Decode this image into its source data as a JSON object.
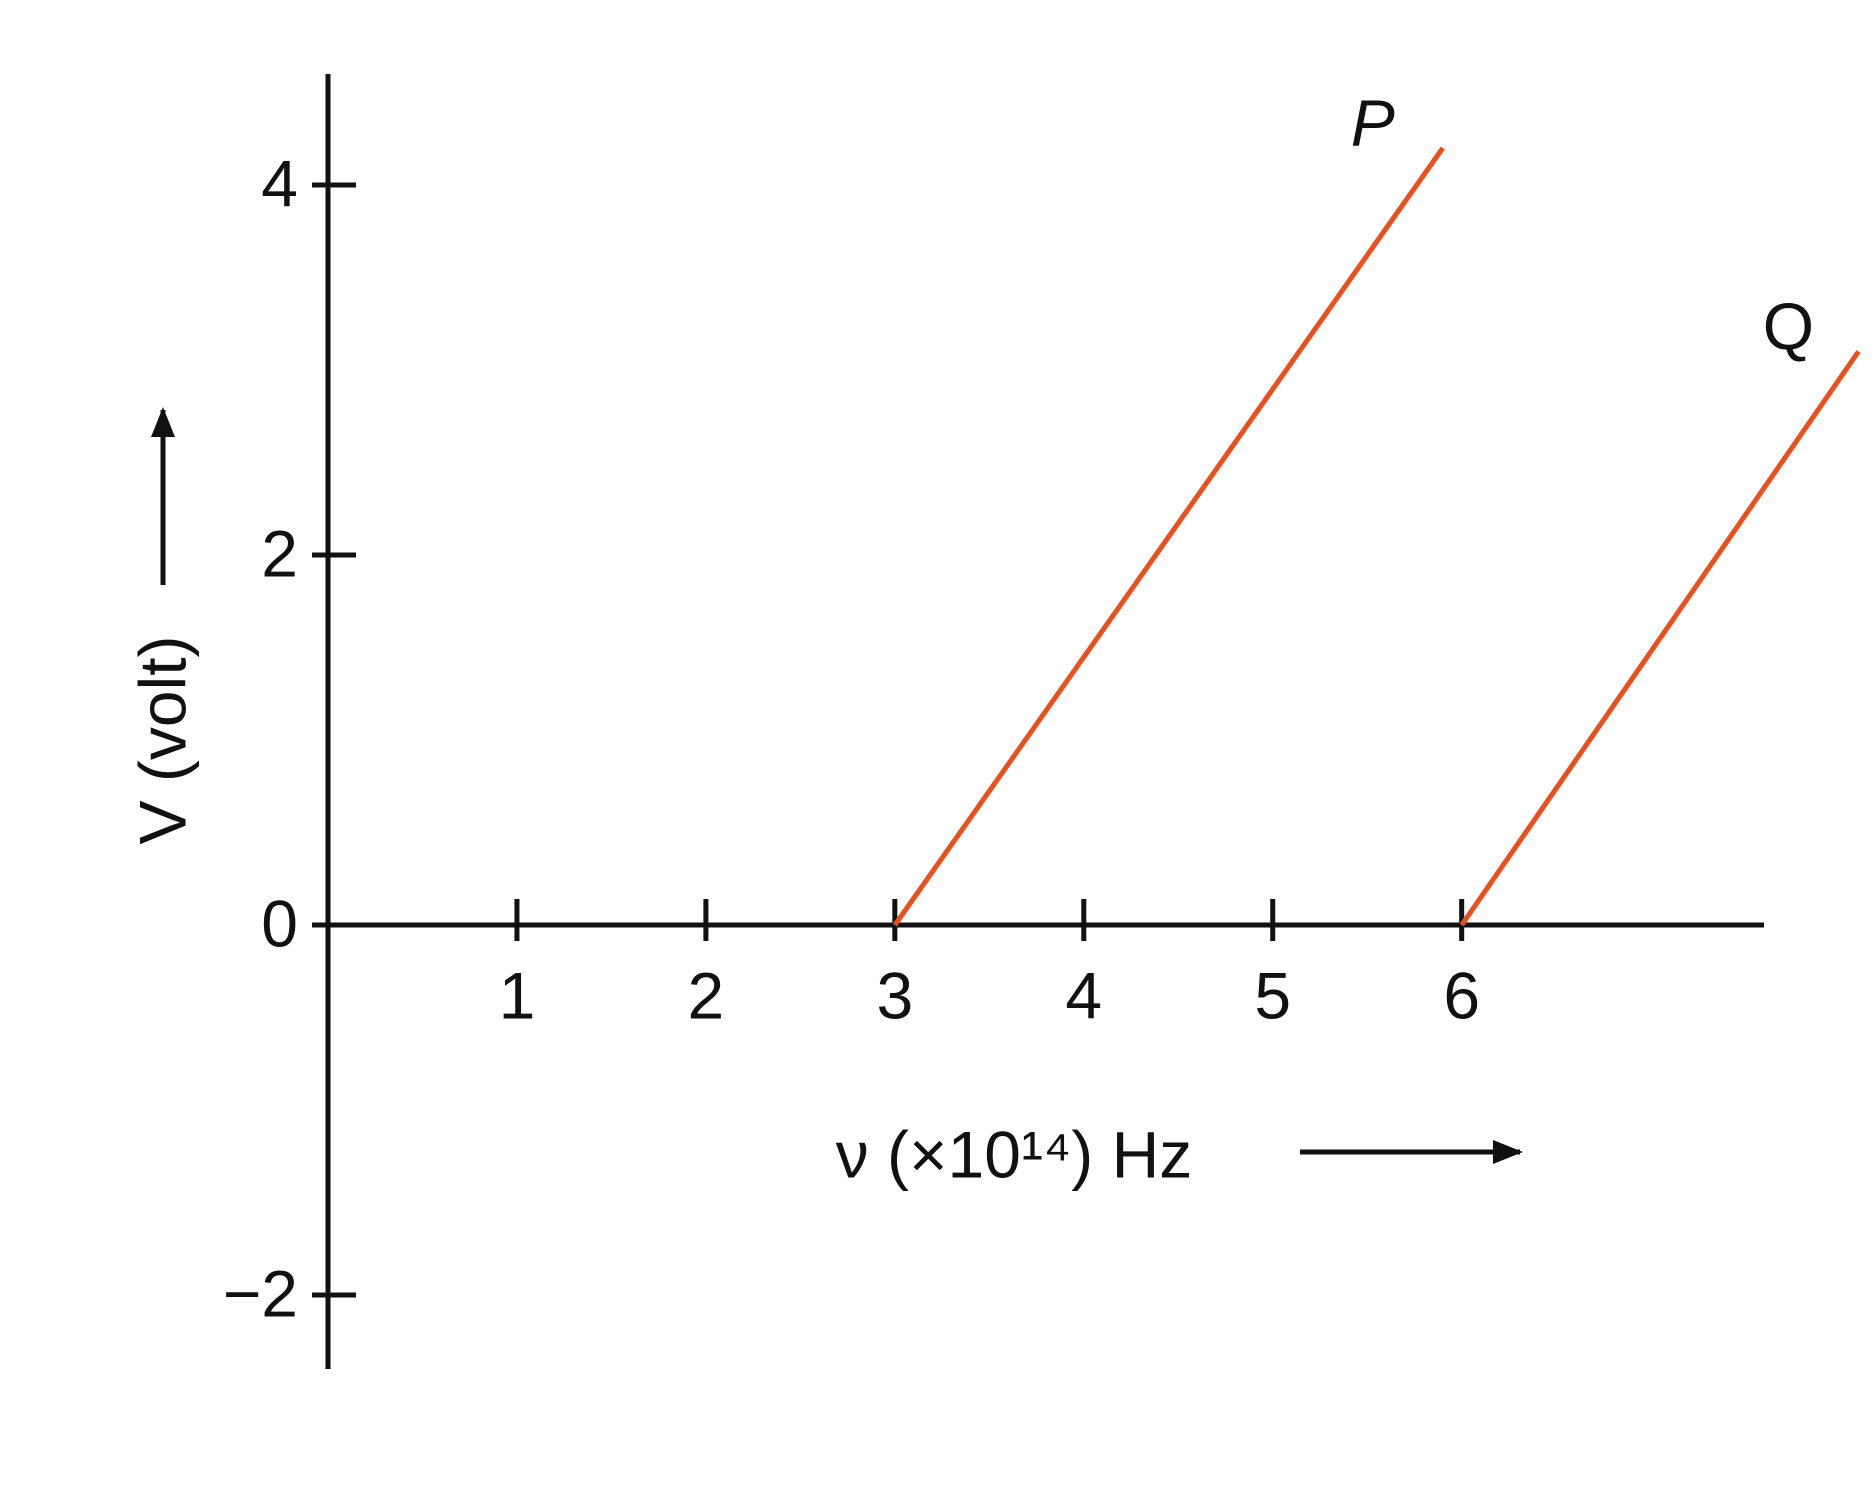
{
  "chart_data": {
    "type": "line",
    "xlabel": "ν (×10¹⁴) Hz",
    "ylabel": "V (volt)",
    "series": [
      {
        "name": "P",
        "color": "#e8501e",
        "x": [
          3,
          5.9
        ],
        "values": [
          0,
          4.2
        ]
      },
      {
        "name": "Q",
        "color": "#e8501e",
        "x": [
          6,
          8.1
        ],
        "values": [
          0,
          3.1
        ]
      }
    ],
    "xlim": [
      0,
      7.6
    ],
    "ylim": [
      -2.4,
      4.6
    ],
    "xticks": [
      1,
      2,
      3,
      4,
      5,
      6
    ],
    "yticks": [
      {
        "value": -2,
        "label": "−2"
      },
      0,
      2,
      4
    ],
    "grid": false
  }
}
